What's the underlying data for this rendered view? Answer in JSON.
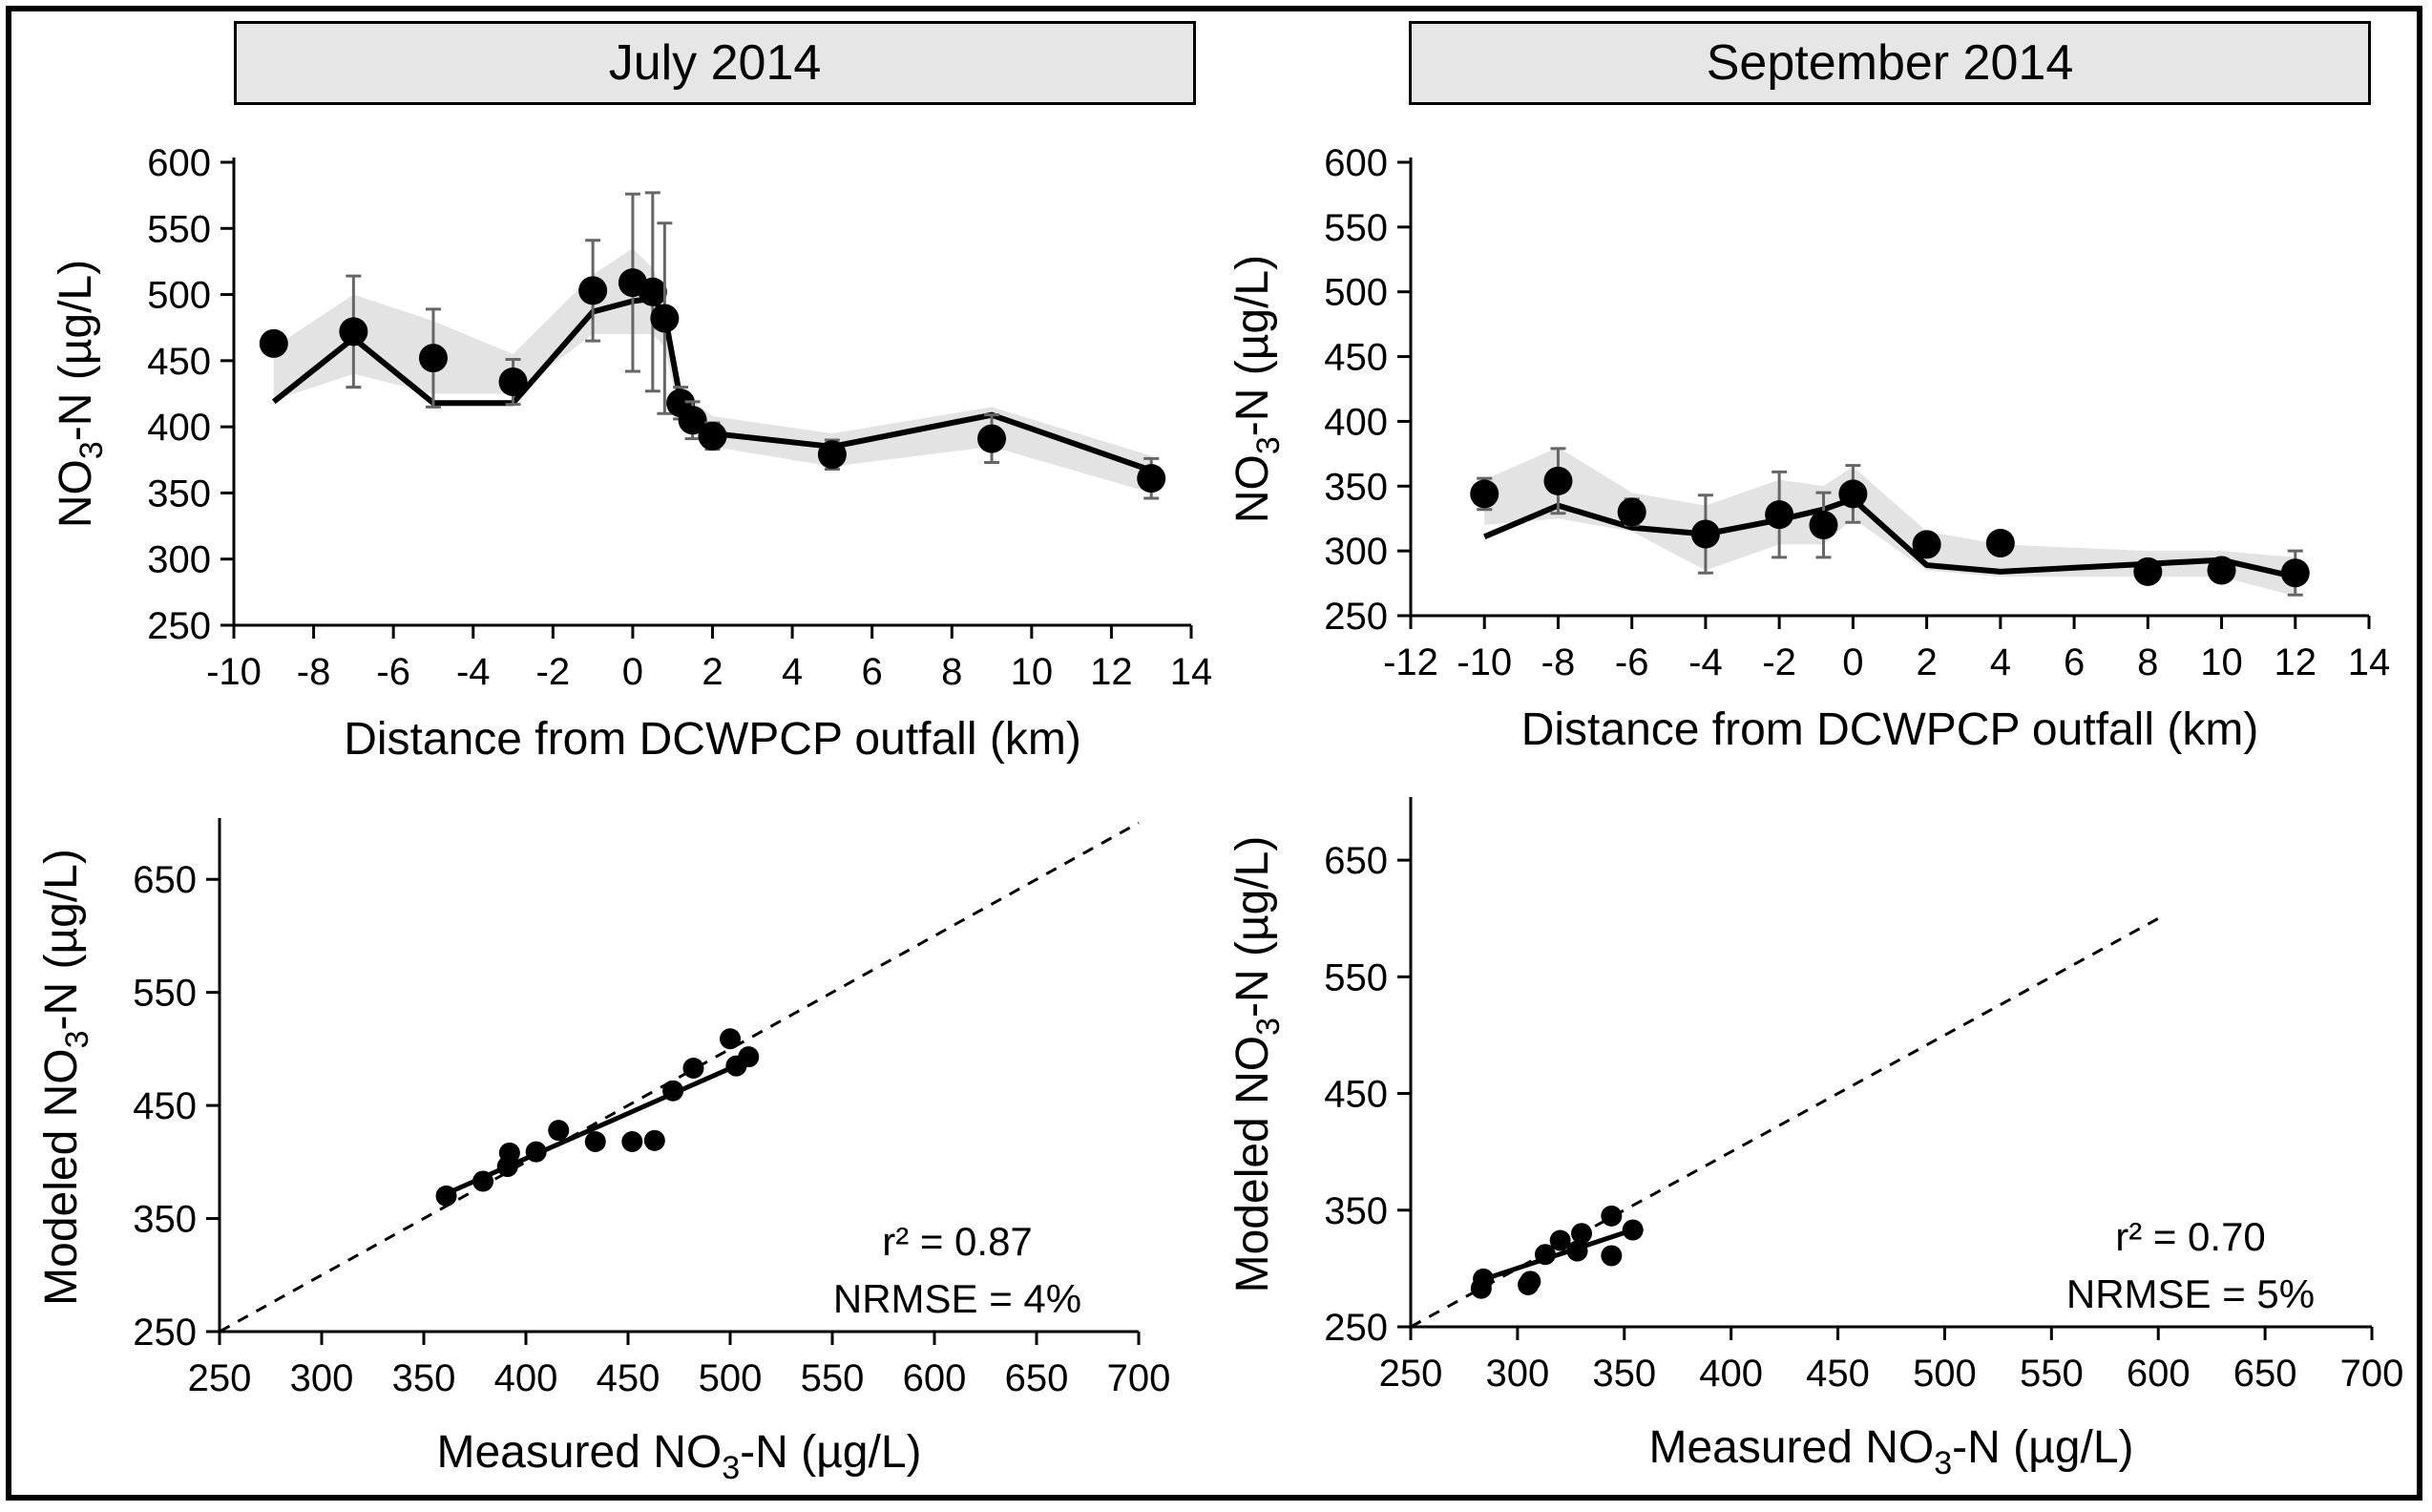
{
  "chart_data": [
    {
      "type": "line",
      "panel": "July 2014",
      "title": "July 2014",
      "xlabel": "Distance from DCWPCP outfall (km)",
      "ylabel": "NO3-N (µg/L)",
      "ylabel_main": "NO",
      "ylabel_sub": "3",
      "ylabel_tail": "-N (µg/L)",
      "xlim": [
        -10,
        14
      ],
      "ylim": [
        250,
        600
      ],
      "xticks": [
        -10,
        -8,
        -6,
        -4,
        -2,
        0,
        2,
        4,
        6,
        8,
        10,
        12,
        14
      ],
      "yticks": [
        250,
        300,
        350,
        400,
        450,
        500,
        550,
        600
      ],
      "series": [
        {
          "name": "Measured",
          "kind": "points",
          "x": [
            -9,
            -7,
            -5,
            -3,
            -1,
            0,
            0.5,
            0.8,
            1.2,
            1.5,
            2,
            5,
            9,
            13
          ],
          "y": [
            463,
            472,
            452,
            434,
            503,
            509,
            502,
            482,
            418,
            405,
            393,
            379,
            391,
            361
          ],
          "err": [
            8,
            42,
            37,
            17,
            38,
            67,
            75,
            72,
            12,
            14,
            10,
            11,
            18,
            15
          ]
        },
        {
          "name": "Modeled",
          "kind": "line",
          "x": [
            -9,
            -7,
            -5,
            -3,
            -1,
            0,
            0.5,
            0.8,
            1.2,
            1.5,
            2,
            5,
            9,
            13
          ],
          "y": [
            419,
            467,
            418,
            418,
            487,
            495,
            497,
            485,
            420,
            410,
            395,
            385,
            409,
            367
          ]
        },
        {
          "name": "Model uncertainty band",
          "kind": "band",
          "x": [
            -9,
            -7,
            -5,
            -3,
            -1,
            0,
            0.5,
            0.8,
            1.2,
            1.5,
            2,
            5,
            9,
            13
          ],
          "upper": [
            460,
            500,
            480,
            455,
            515,
            535,
            520,
            500,
            430,
            420,
            408,
            395,
            415,
            378
          ],
          "lower": [
            420,
            440,
            425,
            425,
            470,
            470,
            470,
            460,
            405,
            395,
            385,
            370,
            385,
            350
          ]
        }
      ]
    },
    {
      "type": "line",
      "panel": "September 2014",
      "title": "September 2014",
      "xlabel": "Distance from DCWPCP outfall (km)",
      "ylabel": "NO3-N (µg/L)",
      "ylabel_main": "NO",
      "ylabel_sub": "3",
      "ylabel_tail": "-N (µg/L)",
      "xlim": [
        -12,
        14
      ],
      "ylim": [
        250,
        600
      ],
      "xticks": [
        -12,
        -10,
        -8,
        -6,
        -4,
        -2,
        0,
        2,
        4,
        6,
        8,
        10,
        12,
        14
      ],
      "yticks": [
        250,
        300,
        350,
        400,
        450,
        500,
        550,
        600
      ],
      "series": [
        {
          "name": "Measured",
          "kind": "points",
          "x": [
            -10,
            -8,
            -6,
            -4,
            -2,
            -0.8,
            0,
            2,
            4,
            8,
            10,
            12
          ],
          "y": [
            344,
            354,
            330,
            313,
            328,
            320,
            344,
            305,
            306,
            284,
            285,
            283
          ],
          "err": [
            12,
            25,
            10,
            30,
            33,
            25,
            22,
            8,
            5,
            6,
            8,
            17
          ]
        },
        {
          "name": "Modeled",
          "kind": "line",
          "x": [
            -10,
            -8,
            -6,
            -4,
            -2,
            -0.8,
            0,
            2,
            4,
            8,
            10,
            12
          ],
          "y": [
            311,
            335,
            318,
            313,
            324,
            332,
            340,
            289,
            284,
            290,
            293,
            280
          ]
        },
        {
          "name": "Model uncertainty band",
          "kind": "band",
          "x": [
            -10,
            -8,
            -6,
            -4,
            -2,
            -0.8,
            0,
            2,
            4,
            8,
            10,
            12
          ],
          "upper": [
            355,
            380,
            345,
            335,
            355,
            350,
            365,
            315,
            305,
            300,
            300,
            295
          ],
          "lower": [
            320,
            325,
            315,
            285,
            305,
            305,
            325,
            285,
            280,
            280,
            280,
            265
          ]
        }
      ]
    },
    {
      "type": "scatter",
      "panel": "July 2014",
      "xlabel": "Measured NO3-N (µg/L)",
      "xlabel_main": "Measured NO",
      "xlabel_sub": "3",
      "xlabel_tail": "-N (µg/L)",
      "ylabel": "Modeled NO3-N (µg/L)",
      "ylabel_main": "Modeled NO",
      "ylabel_sub": "3",
      "ylabel_tail": "-N (µg/L)",
      "xlim": [
        250,
        700
      ],
      "ylim": [
        250,
        700
      ],
      "xticks": [
        250,
        300,
        350,
        400,
        450,
        500,
        550,
        600,
        650,
        700
      ],
      "yticks": [
        250,
        350,
        450,
        550,
        650
      ],
      "x": [
        361,
        379,
        391,
        392,
        405,
        416,
        434,
        452,
        463,
        472,
        482,
        500,
        503,
        509
      ],
      "y": [
        370,
        383,
        396,
        408,
        409,
        428,
        418,
        418,
        419,
        463,
        483,
        509,
        485,
        493
      ],
      "fit_line": {
        "x": [
          361,
          509
        ],
        "y": [
          372,
          490
        ]
      },
      "identity_line": {
        "x": [
          250,
          700
        ],
        "y": [
          250,
          700
        ]
      },
      "annotations": [
        "r² = 0.87",
        "NRMSE = 4%"
      ]
    },
    {
      "type": "scatter",
      "panel": "September 2014",
      "xlabel": "Measured NO3-N (µg/L)",
      "xlabel_main": "Measured NO",
      "xlabel_sub": "3",
      "xlabel_tail": "-N (µg/L)",
      "ylabel": "Modeled NO3-N (µg/L)",
      "ylabel_main": "Modeled NO",
      "ylabel_sub": "3",
      "ylabel_tail": "-N (µg/L)",
      "xlim": [
        250,
        700
      ],
      "ylim": [
        250,
        700
      ],
      "xticks": [
        250,
        300,
        350,
        400,
        450,
        500,
        550,
        600,
        650,
        700
      ],
      "yticks": [
        250,
        350,
        450,
        550,
        650
      ],
      "x": [
        283,
        284,
        305,
        306,
        313,
        320,
        328,
        330,
        344,
        344,
        354
      ],
      "y": [
        283,
        291,
        286,
        289,
        312,
        324,
        315,
        330,
        311,
        345,
        333
      ],
      "fit_line": {
        "x": [
          283,
          354
        ],
        "y": [
          290,
          333
        ]
      },
      "identity_line": {
        "x": [
          250,
          600
        ],
        "y": [
          250,
          600
        ]
      },
      "annotations": [
        "r² = 0.70",
        "NRMSE = 5%"
      ]
    }
  ]
}
